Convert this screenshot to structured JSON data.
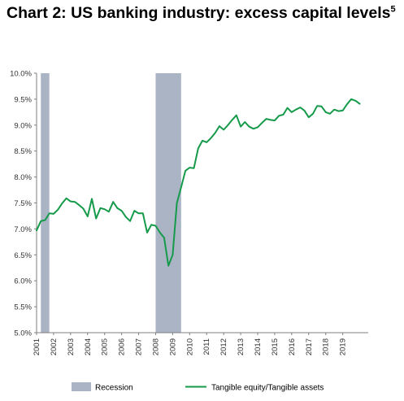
{
  "title": "Chart 2: US banking industry: excess capital levels",
  "title_footnote": "5",
  "colors": {
    "line": "#159a4a",
    "recession": "#aab4c5",
    "axis": "#7f7f7f"
  },
  "chart_data": {
    "type": "line",
    "title": "Chart 2: US banking industry: excess capital levels",
    "xlabel": "",
    "ylabel": "",
    "xlim": [
      2001,
      2020.5
    ],
    "ylim": [
      5.0,
      10.0
    ],
    "y_ticks": [
      "5.0%",
      "5.5%",
      "6.0%",
      "6.5%",
      "7.0%",
      "7.5%",
      "8.0%",
      "8.5%",
      "9.0%",
      "9.5%",
      "10.0%"
    ],
    "x_ticks": [
      "2001",
      "2002",
      "2003",
      "2004",
      "2005",
      "2006",
      "2007",
      "2008",
      "2009",
      "2010",
      "2011",
      "2012",
      "2013",
      "2014",
      "2015",
      "2016",
      "2017",
      "2018",
      "2019"
    ],
    "grid": false,
    "legend_position": "bottom",
    "recessions": [
      {
        "name": "Recession",
        "start": 2001.25,
        "end": 2001.75
      },
      {
        "name": "Recession",
        "start": 2008.0,
        "end": 2009.5
      }
    ],
    "series": [
      {
        "name": "Tangible equity/Tangible assets",
        "x": [
          2001.0,
          2001.25,
          2001.5,
          2001.75,
          2002.0,
          2002.25,
          2002.5,
          2002.75,
          2003.0,
          2003.25,
          2003.5,
          2003.75,
          2004.0,
          2004.25,
          2004.5,
          2004.75,
          2005.0,
          2005.25,
          2005.5,
          2005.75,
          2006.0,
          2006.25,
          2006.5,
          2006.75,
          2007.0,
          2007.25,
          2007.5,
          2007.75,
          2008.0,
          2008.25,
          2008.5,
          2008.75,
          2009.0,
          2009.25,
          2009.5,
          2009.75,
          2010.0,
          2010.25,
          2010.5,
          2010.75,
          2011.0,
          2011.25,
          2011.5,
          2011.75,
          2012.0,
          2012.25,
          2012.5,
          2012.75,
          2013.0,
          2013.25,
          2013.5,
          2013.75,
          2014.0,
          2014.25,
          2014.5,
          2014.75,
          2015.0,
          2015.25,
          2015.5,
          2015.75,
          2016.0,
          2016.25,
          2016.5,
          2016.75,
          2017.0,
          2017.25,
          2017.5,
          2017.75,
          2018.0,
          2018.25,
          2018.5,
          2018.75,
          2019.0,
          2019.25,
          2019.5,
          2019.75,
          2020.0
        ],
        "y": [
          6.97,
          7.15,
          7.17,
          7.3,
          7.29,
          7.37,
          7.49,
          7.59,
          7.53,
          7.52,
          7.46,
          7.39,
          7.24,
          7.58,
          7.2,
          7.4,
          7.38,
          7.33,
          7.52,
          7.4,
          7.35,
          7.23,
          7.15,
          7.35,
          7.3,
          7.3,
          6.93,
          7.08,
          7.06,
          6.93,
          6.83,
          6.29,
          6.5,
          7.5,
          7.8,
          8.12,
          8.18,
          8.17,
          8.55,
          8.7,
          8.67,
          8.75,
          8.85,
          8.98,
          8.91,
          9.0,
          9.1,
          9.19,
          8.97,
          9.06,
          8.97,
          8.93,
          8.96,
          9.04,
          9.12,
          9.1,
          9.09,
          9.18,
          9.2,
          9.33,
          9.25,
          9.3,
          9.34,
          9.28,
          9.15,
          9.22,
          9.37,
          9.36,
          9.25,
          9.22,
          9.3,
          9.27,
          9.28,
          9.4,
          9.5,
          9.47,
          9.41
        ]
      }
    ]
  },
  "legend": {
    "recession_label": "Recession",
    "series_label": "Tangible equity/Tangible assets"
  }
}
